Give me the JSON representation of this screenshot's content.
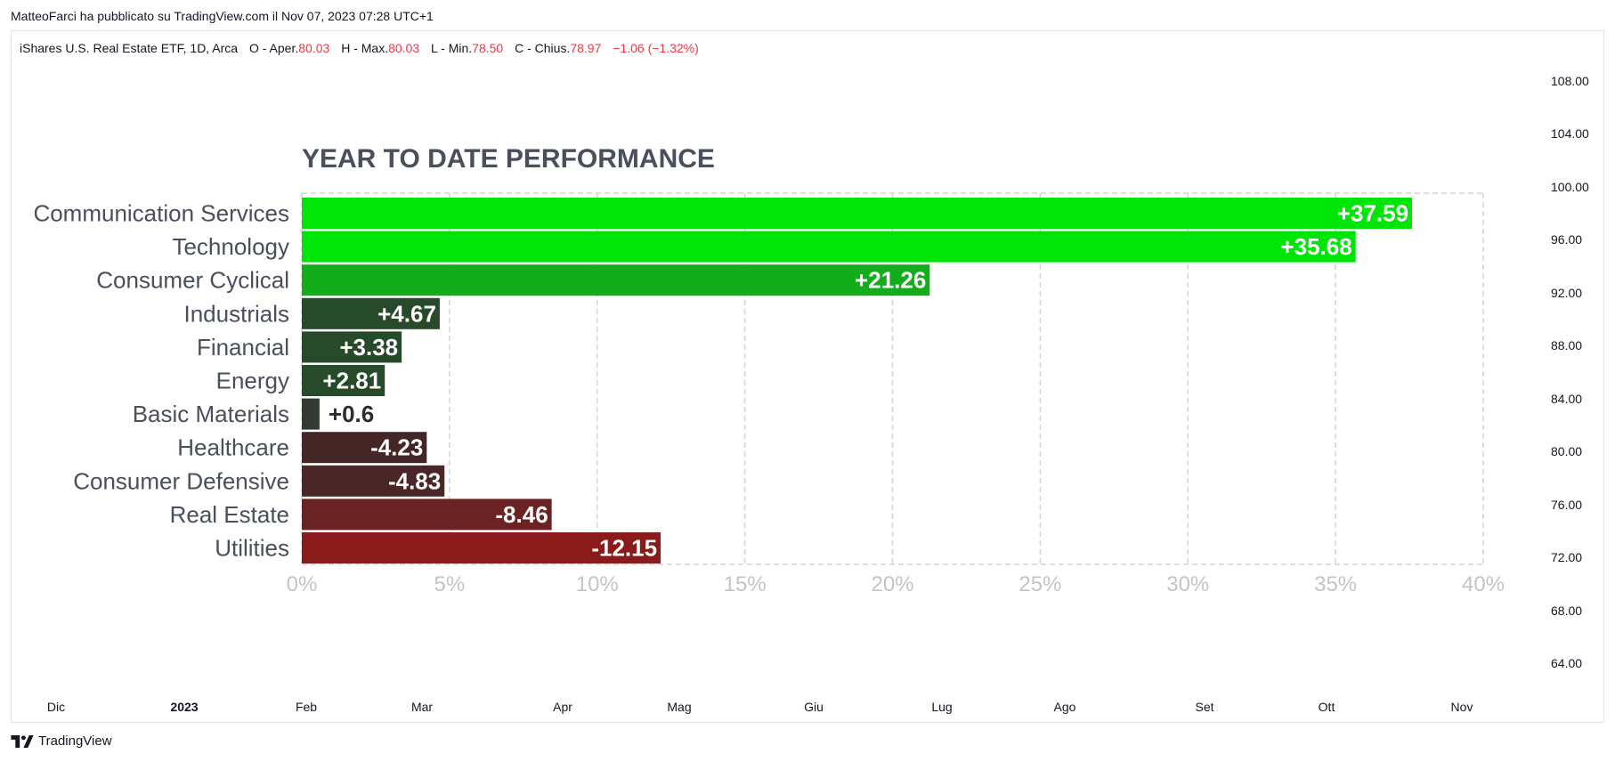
{
  "header": {
    "publisher_text": "MatteoFarci ha pubblicato su TradingView.com il Nov 07, 2023 07:28 UTC+1"
  },
  "legend": {
    "symbol": "iShares U.S. Real Estate ETF, 1D, Arca",
    "open_label": "O - Aper.",
    "open_value": "80.03",
    "high_label": "H - Max.",
    "high_value": "80.03",
    "low_label": "L - Min.",
    "low_value": "78.50",
    "close_label": "C - Chius.",
    "close_value": "78.97",
    "change": "−1.06 (−1.32%)",
    "value_color": "#f23645"
  },
  "price_axis": [
    "108.00",
    "104.00",
    "100.00",
    "96.00",
    "92.00",
    "88.00",
    "84.00",
    "80.00",
    "76.00",
    "72.00",
    "68.00",
    "64.00"
  ],
  "time_axis": [
    {
      "label": "Dic",
      "bold": false
    },
    {
      "label": "2023",
      "bold": true
    },
    {
      "label": "Feb",
      "bold": false
    },
    {
      "label": "Mar",
      "bold": false
    },
    {
      "label": "Apr",
      "bold": false
    },
    {
      "label": "Mag",
      "bold": false
    },
    {
      "label": "Giu",
      "bold": false
    },
    {
      "label": "Lug",
      "bold": false
    },
    {
      "label": "Ago",
      "bold": false
    },
    {
      "label": "Set",
      "bold": false
    },
    {
      "label": "Ott",
      "bold": false
    },
    {
      "label": "Nov",
      "bold": false
    }
  ],
  "footer": {
    "brand": "TradingView",
    "logo_icon": "tradingview-logo-icon"
  },
  "chart_data": {
    "type": "bar",
    "orientation": "horizontal",
    "title": "YEAR TO DATE PERFORMANCE",
    "categories": [
      "Communication Services",
      "Technology",
      "Consumer Cyclical",
      "Industrials",
      "Financial",
      "Energy",
      "Basic Materials",
      "Healthcare",
      "Consumer Defensive",
      "Real Estate",
      "Utilities"
    ],
    "values": [
      37.59,
      35.68,
      21.26,
      4.67,
      3.38,
      2.81,
      0.6,
      -4.23,
      -4.83,
      -8.46,
      -12.15
    ],
    "value_labels": [
      "+37.59",
      "+35.68",
      "+21.26",
      "+4.67",
      "+3.38",
      "+2.81",
      "+0.6",
      "-4.23",
      "-4.83",
      "-8.46",
      "-12.15"
    ],
    "colors": [
      "#00e508",
      "#00e508",
      "#13ac1b",
      "#264a2a",
      "#264a2a",
      "#264a2a",
      "#333a33",
      "#442626",
      "#4a2626",
      "#6b2222",
      "#8b1a1a"
    ],
    "value_label_colors": [
      "#ffffff",
      "#ffffff",
      "#ffffff",
      "#ffffff",
      "#ffffff",
      "#ffffff",
      "#2d2d2d",
      "#ffffff",
      "#ffffff",
      "#ffffff",
      "#ffffff"
    ],
    "bar_length": "absolute value",
    "xlim": [
      0,
      40
    ],
    "x_ticks": [
      "0%",
      "5%",
      "10%",
      "15%",
      "20%",
      "25%",
      "30%",
      "35%",
      "40%"
    ],
    "grid": true,
    "legend": "none"
  }
}
